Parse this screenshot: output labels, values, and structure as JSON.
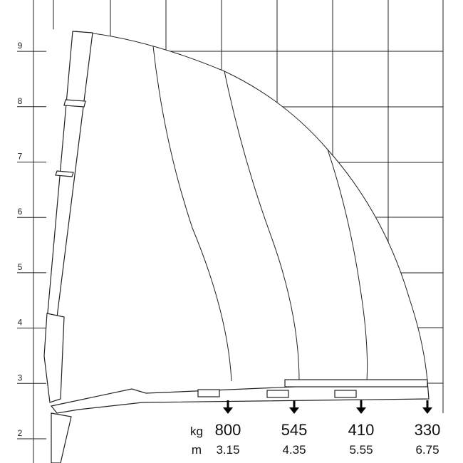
{
  "height_labels": [
    "2",
    "3",
    "4",
    "5",
    "6",
    "7",
    "8",
    "9"
  ],
  "units": {
    "load": "kg",
    "reach": "m"
  },
  "points": [
    {
      "load": "800",
      "reach": "3.15"
    },
    {
      "load": "545",
      "reach": "4.35"
    },
    {
      "load": "410",
      "reach": "5.55"
    },
    {
      "load": "330",
      "reach": "6.75"
    }
  ]
}
